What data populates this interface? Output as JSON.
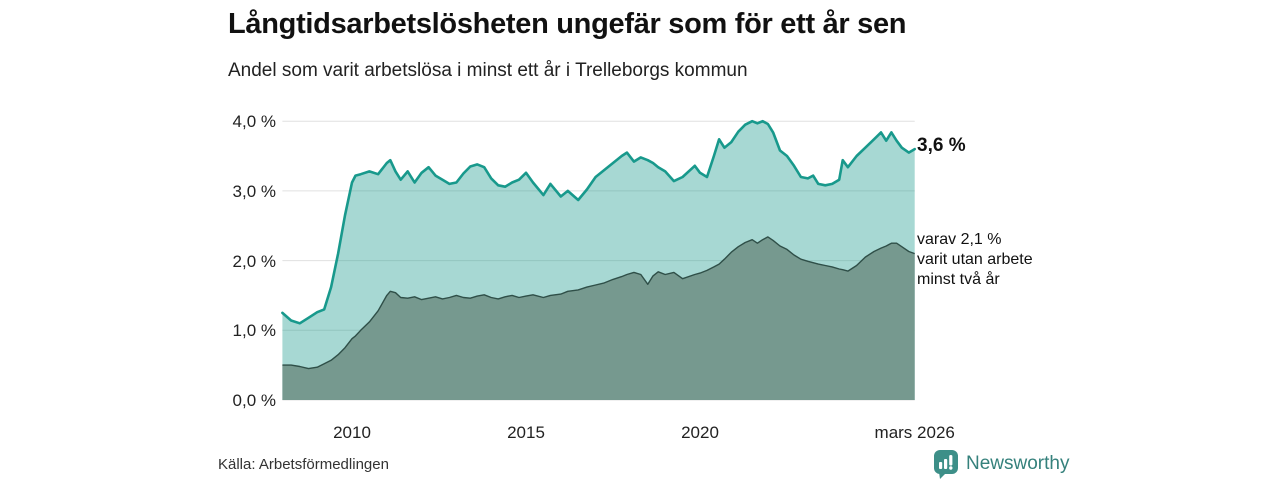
{
  "title": "Långtidsarbetslösheten ungefär som för ett år sen",
  "subtitle": "Andel som varit arbetslösa i minst ett år i Trelleborgs kommun",
  "colors": {
    "total_line": "#18998c",
    "total_fill": "rgba(24,153,140,0.38)",
    "two_year_fill": "#76998f",
    "two_year_line": "#2f4f48",
    "gridline": "#e0e0e0",
    "brand_teal": "#35817c",
    "icon_teal": "#3d8f88"
  },
  "chart_data": {
    "type": "area",
    "title": "Långtidsarbetslösheten ungefär som för ett år sen",
    "subtitle": "Andel som varit arbetslösa i minst ett år i Trelleborgs kommun",
    "unit": "%",
    "ylim": [
      0,
      4.0
    ],
    "xlim": [
      2008,
      2026.25
    ],
    "grid": "horizontal",
    "yticks": [
      {
        "label": "4,0 %",
        "value": 4.0
      },
      {
        "label": "3,0 %",
        "value": 3.0
      },
      {
        "label": "2,0 %",
        "value": 2.0
      },
      {
        "label": "1,0 %",
        "value": 1.0
      },
      {
        "label": "0,0 %",
        "value": 0.0
      }
    ],
    "xticks": [
      {
        "label": "2010",
        "year": 2010
      },
      {
        "label": "2015",
        "year": 2015
      },
      {
        "label": "2020",
        "year": 2020
      },
      {
        "label": "mars 2026",
        "year": 2026.17
      }
    ],
    "x": [
      2008.0,
      2008.25,
      2008.5,
      2008.75,
      2009.0,
      2009.2,
      2009.4,
      2009.6,
      2009.8,
      2010.0,
      2010.1,
      2010.25,
      2010.5,
      2010.75,
      2011.0,
      2011.1,
      2011.25,
      2011.4,
      2011.6,
      2011.8,
      2012.0,
      2012.2,
      2012.4,
      2012.6,
      2012.8,
      2013.0,
      2013.2,
      2013.4,
      2013.6,
      2013.8,
      2014.0,
      2014.2,
      2014.4,
      2014.6,
      2014.8,
      2015.0,
      2015.2,
      2015.5,
      2015.7,
      2016.0,
      2016.2,
      2016.5,
      2016.75,
      2017.0,
      2017.25,
      2017.5,
      2017.75,
      2017.9,
      2018.1,
      2018.3,
      2018.5,
      2018.65,
      2018.8,
      2019.0,
      2019.25,
      2019.5,
      2019.85,
      2020.0,
      2020.2,
      2020.4,
      2020.55,
      2020.7,
      2020.9,
      2021.1,
      2021.3,
      2021.5,
      2021.65,
      2021.8,
      2021.95,
      2022.1,
      2022.3,
      2022.5,
      2022.7,
      2022.9,
      2023.1,
      2023.25,
      2023.4,
      2023.6,
      2023.8,
      2024.0,
      2024.1,
      2024.25,
      2024.5,
      2024.75,
      2025.0,
      2025.2,
      2025.35,
      2025.5,
      2025.65,
      2025.8,
      2026.0,
      2026.17
    ],
    "series": [
      {
        "name": "Andel som varit arbetslösa minst ett år",
        "end_value": 3.6,
        "values": [
          1.25,
          1.14,
          1.1,
          1.18,
          1.26,
          1.3,
          1.62,
          2.1,
          2.65,
          3.12,
          3.22,
          3.24,
          3.28,
          3.24,
          3.4,
          3.44,
          3.28,
          3.16,
          3.28,
          3.12,
          3.26,
          3.34,
          3.22,
          3.16,
          3.1,
          3.12,
          3.25,
          3.35,
          3.38,
          3.34,
          3.18,
          3.08,
          3.06,
          3.12,
          3.16,
          3.26,
          3.12,
          2.94,
          3.1,
          2.92,
          3.0,
          2.87,
          3.02,
          3.2,
          3.3,
          3.4,
          3.5,
          3.55,
          3.42,
          3.48,
          3.44,
          3.4,
          3.34,
          3.28,
          3.14,
          3.2,
          3.36,
          3.26,
          3.2,
          3.5,
          3.74,
          3.62,
          3.7,
          3.85,
          3.95,
          4.0,
          3.97,
          4.0,
          3.96,
          3.84,
          3.58,
          3.5,
          3.36,
          3.2,
          3.18,
          3.22,
          3.1,
          3.08,
          3.1,
          3.16,
          3.44,
          3.34,
          3.5,
          3.62,
          3.74,
          3.84,
          3.72,
          3.84,
          3.72,
          3.62,
          3.55,
          3.6
        ]
      },
      {
        "name": "Varav utan arbete minst två år",
        "end_value": 2.1,
        "values": [
          0.5,
          0.5,
          0.48,
          0.45,
          0.47,
          0.52,
          0.57,
          0.65,
          0.75,
          0.88,
          0.92,
          1.0,
          1.12,
          1.28,
          1.5,
          1.56,
          1.54,
          1.47,
          1.46,
          1.48,
          1.44,
          1.46,
          1.48,
          1.45,
          1.47,
          1.5,
          1.47,
          1.46,
          1.49,
          1.51,
          1.47,
          1.45,
          1.48,
          1.5,
          1.47,
          1.49,
          1.51,
          1.47,
          1.5,
          1.52,
          1.56,
          1.58,
          1.62,
          1.65,
          1.68,
          1.73,
          1.77,
          1.8,
          1.83,
          1.8,
          1.66,
          1.78,
          1.84,
          1.8,
          1.83,
          1.74,
          1.8,
          1.82,
          1.86,
          1.91,
          1.95,
          2.02,
          2.12,
          2.2,
          2.26,
          2.3,
          2.25,
          2.3,
          2.34,
          2.29,
          2.21,
          2.16,
          2.08,
          2.02,
          1.99,
          1.97,
          1.95,
          1.93,
          1.91,
          1.88,
          1.87,
          1.85,
          1.93,
          2.05,
          2.13,
          2.18,
          2.21,
          2.25,
          2.25,
          2.2,
          2.13,
          2.1
        ]
      }
    ],
    "annotations": {
      "total_end_label": "3,6 %",
      "two_year_end_lines": [
        "varav 2,1 %",
        "varit utan arbete",
        "minst två år"
      ]
    }
  },
  "footer": {
    "source": "Källa: Arbetsförmedlingen",
    "brand": "Newsworthy"
  }
}
